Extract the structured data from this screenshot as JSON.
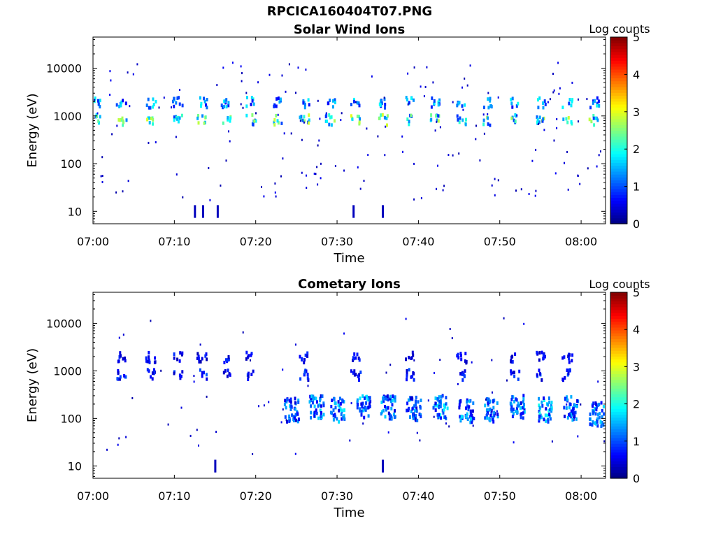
{
  "figure_title": "RPCICA160404T07.PNG",
  "chart_data": [
    {
      "type": "heatmap",
      "title": "Solar Wind Ions",
      "xlabel": "Time",
      "ylabel": "Energy (eV)",
      "yscale": "log",
      "ylim": [
        5.5,
        45000
      ],
      "xlim": [
        "07:00",
        "08:03"
      ],
      "xticks": [
        "07:00",
        "07:10",
        "07:20",
        "07:30",
        "07:40",
        "07:50",
        "08:00"
      ],
      "yticks": [
        "10",
        "100",
        "1000",
        "10000"
      ],
      "colorbar": {
        "label": "Log counts",
        "range": [
          0,
          5
        ],
        "ticks": [
          "0",
          "1",
          "2",
          "3",
          "4",
          "5"
        ],
        "colormap": "jet"
      },
      "grid": false,
      "bands": [
        {
          "name": "upper",
          "energy": 1900,
          "intensity": 1.6
        },
        {
          "name": "lower",
          "energy": 820,
          "intensity": 2.4
        }
      ],
      "band_times_min": [
        0.3,
        3.4,
        7.0,
        10.3,
        13.3,
        16.2,
        19.3,
        22.7,
        25.9,
        29.1,
        32.2,
        35.5,
        38.8,
        42.0,
        45.2,
        48.4,
        51.7,
        55.0,
        58.2,
        61.5
      ],
      "lines": [
        {
          "time_min": 12.4,
          "energy": 10,
          "intensity": 0.3
        },
        {
          "time_min": 13.4,
          "energy": 10,
          "intensity": 0.3
        },
        {
          "time_min": 15.2,
          "energy": 10,
          "intensity": 0.3
        },
        {
          "time_min": 31.9,
          "energy": 10,
          "intensity": 0.3
        },
        {
          "time_min": 35.5,
          "energy": 10,
          "intensity": 0.3
        }
      ]
    },
    {
      "type": "heatmap",
      "title": "Cometary Ions",
      "xlabel": "Time",
      "ylabel": "Energy (eV)",
      "yscale": "log",
      "ylim": [
        5.5,
        45000
      ],
      "xlim": [
        "07:00",
        "08:03"
      ],
      "xticks": [
        "07:00",
        "07:10",
        "07:20",
        "07:30",
        "07:40",
        "07:50",
        "08:00"
      ],
      "yticks": [
        "10",
        "100",
        "1000",
        "10000"
      ],
      "colorbar": {
        "label": "Log counts",
        "range": [
          0,
          5
        ],
        "ticks": [
          "0",
          "1",
          "2",
          "3",
          "4",
          "5"
        ],
        "colormap": "jet"
      },
      "grid": false,
      "bands": [
        {
          "name": "upper",
          "energy": 1900,
          "intensity": 0.7
        },
        {
          "name": "lower",
          "energy": 820,
          "intensity": 0.9
        }
      ],
      "band_times_min": [
        3.4,
        7.0,
        10.3,
        13.3,
        16.2,
        19.3,
        25.9,
        32.2,
        38.8,
        45.2,
        51.7,
        55.0,
        58.2
      ],
      "bursts": [
        {
          "time_min": 24.3,
          "energy": 150,
          "intensity": 1.3
        },
        {
          "time_min": 27.4,
          "energy": 170,
          "intensity": 1.4
        },
        {
          "time_min": 29.9,
          "energy": 150,
          "intensity": 1.5
        },
        {
          "time_min": 33.1,
          "energy": 170,
          "intensity": 1.5
        },
        {
          "time_min": 36.2,
          "energy": 170,
          "intensity": 1.4
        },
        {
          "time_min": 39.3,
          "energy": 160,
          "intensity": 1.3
        },
        {
          "time_min": 42.6,
          "energy": 170,
          "intensity": 1.5
        },
        {
          "time_min": 45.8,
          "energy": 140,
          "intensity": 1.4
        },
        {
          "time_min": 48.9,
          "energy": 150,
          "intensity": 1.3
        },
        {
          "time_min": 52.1,
          "energy": 170,
          "intensity": 1.4
        },
        {
          "time_min": 55.4,
          "energy": 150,
          "intensity": 1.6
        },
        {
          "time_min": 58.6,
          "energy": 160,
          "intensity": 1.3
        },
        {
          "time_min": 61.8,
          "energy": 120,
          "intensity": 1.4
        }
      ],
      "lines": [
        {
          "time_min": 14.9,
          "energy": 10,
          "intensity": 0.3
        },
        {
          "time_min": 35.5,
          "energy": 10,
          "intensity": 0.3
        }
      ]
    }
  ]
}
